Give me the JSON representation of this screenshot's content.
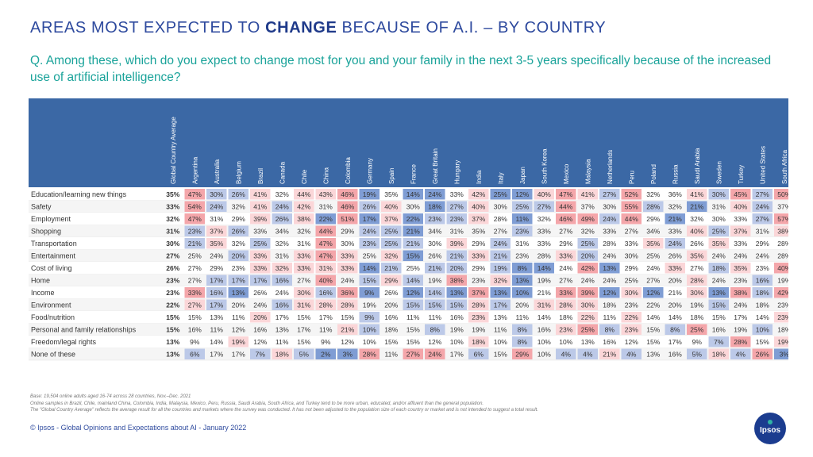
{
  "title": {
    "prefix": "AREAS MOST EXPECTED TO ",
    "bold": "CHANGE",
    "suffix": " BECAUSE OF A.I. – BY COUNTRY"
  },
  "question": "Q. Among these, which do you expect to change most for you and your family in the next 3-5 years specifically because of the increased use of artificial intelligence?",
  "footnotes": [
    "Base: 19,504 online adults aged 16-74 across 28 countries, Nov.–Dec. 2021",
    "Online samples in Brazil, Chile, mainland China, Colombia, India, Malaysia, Mexico, Peru, Russia, Saudi Arabia, South Africa, and Turkey tend to be more urban, educated, and/or affluent than the general population.",
    "The \"Global Country Average\" reflects the average result for all the countries and markets where the survey was conducted. It has not been adjusted to the population size of each country or market and is not intended to suggest a total result."
  ],
  "copyright": "© Ipsos - Global Opinions and Expectations about AI - January 2022",
  "logo_text": "Ipsos",
  "colors": {
    "header_bg": "#3b68a5",
    "high": "#f4a6aa",
    "mid_high": "#fbd6d8",
    "low": "#bcc9e8",
    "very_low": "#7f9dd4",
    "row_even": "#ffffff",
    "row_odd": "#f5f5f5"
  },
  "chart_data": {
    "type": "heatmap",
    "unit": "%",
    "columns": [
      "Global Country Average",
      "Argentina",
      "Australia",
      "Belgium",
      "Brazil",
      "Canada",
      "Chile",
      "China",
      "Colombia",
      "Germany",
      "Spain",
      "France",
      "Great Britain",
      "Hungary",
      "India",
      "Italy",
      "Japan",
      "South Korea",
      "Mexico",
      "Malaysia",
      "Netherlands",
      "Peru",
      "Poland",
      "Russia",
      "Saudi Arabia",
      "Sweden",
      "Turkey",
      "United States",
      "South Africa"
    ],
    "rows": [
      {
        "label": "Education/learning new things",
        "values": [
          35,
          47,
          30,
          26,
          41,
          32,
          44,
          43,
          46,
          19,
          35,
          14,
          24,
          33,
          42,
          25,
          12,
          40,
          47,
          41,
          27,
          52,
          32,
          36,
          41,
          30,
          45,
          27,
          50
        ]
      },
      {
        "label": "Safety",
        "values": [
          33,
          54,
          24,
          32,
          41,
          24,
          42,
          31,
          46,
          26,
          40,
          30,
          18,
          27,
          40,
          30,
          25,
          27,
          44,
          37,
          30,
          55,
          28,
          32,
          21,
          31,
          40,
          24,
          37
        ]
      },
      {
        "label": "Employment",
        "values": [
          32,
          47,
          31,
          29,
          39,
          26,
          38,
          22,
          51,
          17,
          37,
          22,
          23,
          23,
          37,
          28,
          11,
          32,
          46,
          49,
          24,
          44,
          29,
          21,
          32,
          30,
          33,
          27,
          57
        ]
      },
      {
        "label": "Shopping",
        "values": [
          31,
          23,
          37,
          26,
          33,
          34,
          32,
          44,
          29,
          24,
          25,
          21,
          34,
          31,
          35,
          27,
          23,
          33,
          27,
          32,
          33,
          27,
          34,
          33,
          40,
          25,
          37,
          31,
          38
        ]
      },
      {
        "label": "Transportation",
        "values": [
          30,
          21,
          35,
          32,
          25,
          32,
          31,
          47,
          30,
          23,
          25,
          21,
          30,
          39,
          29,
          24,
          31,
          33,
          29,
          25,
          28,
          33,
          35,
          24,
          26,
          35,
          33,
          29,
          28
        ]
      },
      {
        "label": "Entertainment",
        "values": [
          27,
          25,
          24,
          20,
          33,
          31,
          33,
          47,
          33,
          25,
          32,
          15,
          26,
          21,
          33,
          21,
          23,
          28,
          33,
          20,
          24,
          30,
          25,
          26,
          35,
          24,
          24,
          24,
          28
        ]
      },
      {
        "label": "Cost of living",
        "values": [
          26,
          27,
          29,
          23,
          33,
          32,
          33,
          31,
          33,
          14,
          21,
          25,
          21,
          20,
          29,
          19,
          8,
          14,
          24,
          42,
          13,
          29,
          24,
          33,
          27,
          18,
          35,
          23,
          40
        ]
      },
      {
        "label": "Home",
        "values": [
          23,
          27,
          17,
          17,
          17,
          16,
          27,
          40,
          24,
          15,
          29,
          14,
          19,
          38,
          23,
          32,
          13,
          19,
          27,
          24,
          24,
          25,
          27,
          20,
          28,
          24,
          23,
          16,
          19
        ]
      },
      {
        "label": "Income",
        "values": [
          23,
          33,
          16,
          13,
          26,
          24,
          30,
          16,
          36,
          9,
          26,
          12,
          14,
          13,
          37,
          13,
          10,
          21,
          33,
          39,
          12,
          30,
          12,
          21,
          30,
          13,
          38,
          18,
          42
        ]
      },
      {
        "label": "Environment",
        "values": [
          22,
          27,
          17,
          20,
          24,
          16,
          31,
          28,
          28,
          19,
          20,
          15,
          15,
          15,
          28,
          17,
          20,
          31,
          28,
          30,
          18,
          23,
          22,
          20,
          19,
          15,
          24,
          18,
          23
        ]
      },
      {
        "label": "Food/nutrition",
        "values": [
          15,
          15,
          13,
          11,
          20,
          17,
          15,
          17,
          15,
          9,
          16,
          11,
          11,
          16,
          23,
          13,
          11,
          14,
          18,
          22,
          11,
          22,
          14,
          14,
          18,
          15,
          17,
          14,
          23
        ]
      },
      {
        "label": "Personal and family relationships",
        "values": [
          15,
          16,
          11,
          12,
          16,
          13,
          17,
          11,
          21,
          10,
          18,
          15,
          8,
          19,
          19,
          11,
          8,
          16,
          23,
          25,
          8,
          23,
          15,
          8,
          25,
          16,
          19,
          10,
          18
        ]
      },
      {
        "label": "Freedom/legal rights",
        "values": [
          13,
          9,
          14,
          19,
          12,
          11,
          15,
          9,
          12,
          10,
          15,
          15,
          12,
          10,
          18,
          10,
          8,
          10,
          10,
          13,
          16,
          12,
          15,
          17,
          9,
          7,
          28,
          15,
          19
        ]
      },
      {
        "label": "None of these",
        "values": [
          13,
          6,
          17,
          17,
          7,
          18,
          5,
          2,
          3,
          28,
          11,
          27,
          24,
          17,
          6,
          15,
          29,
          10,
          4,
          4,
          21,
          4,
          13,
          16,
          5,
          18,
          4,
          26,
          3
        ]
      }
    ]
  }
}
